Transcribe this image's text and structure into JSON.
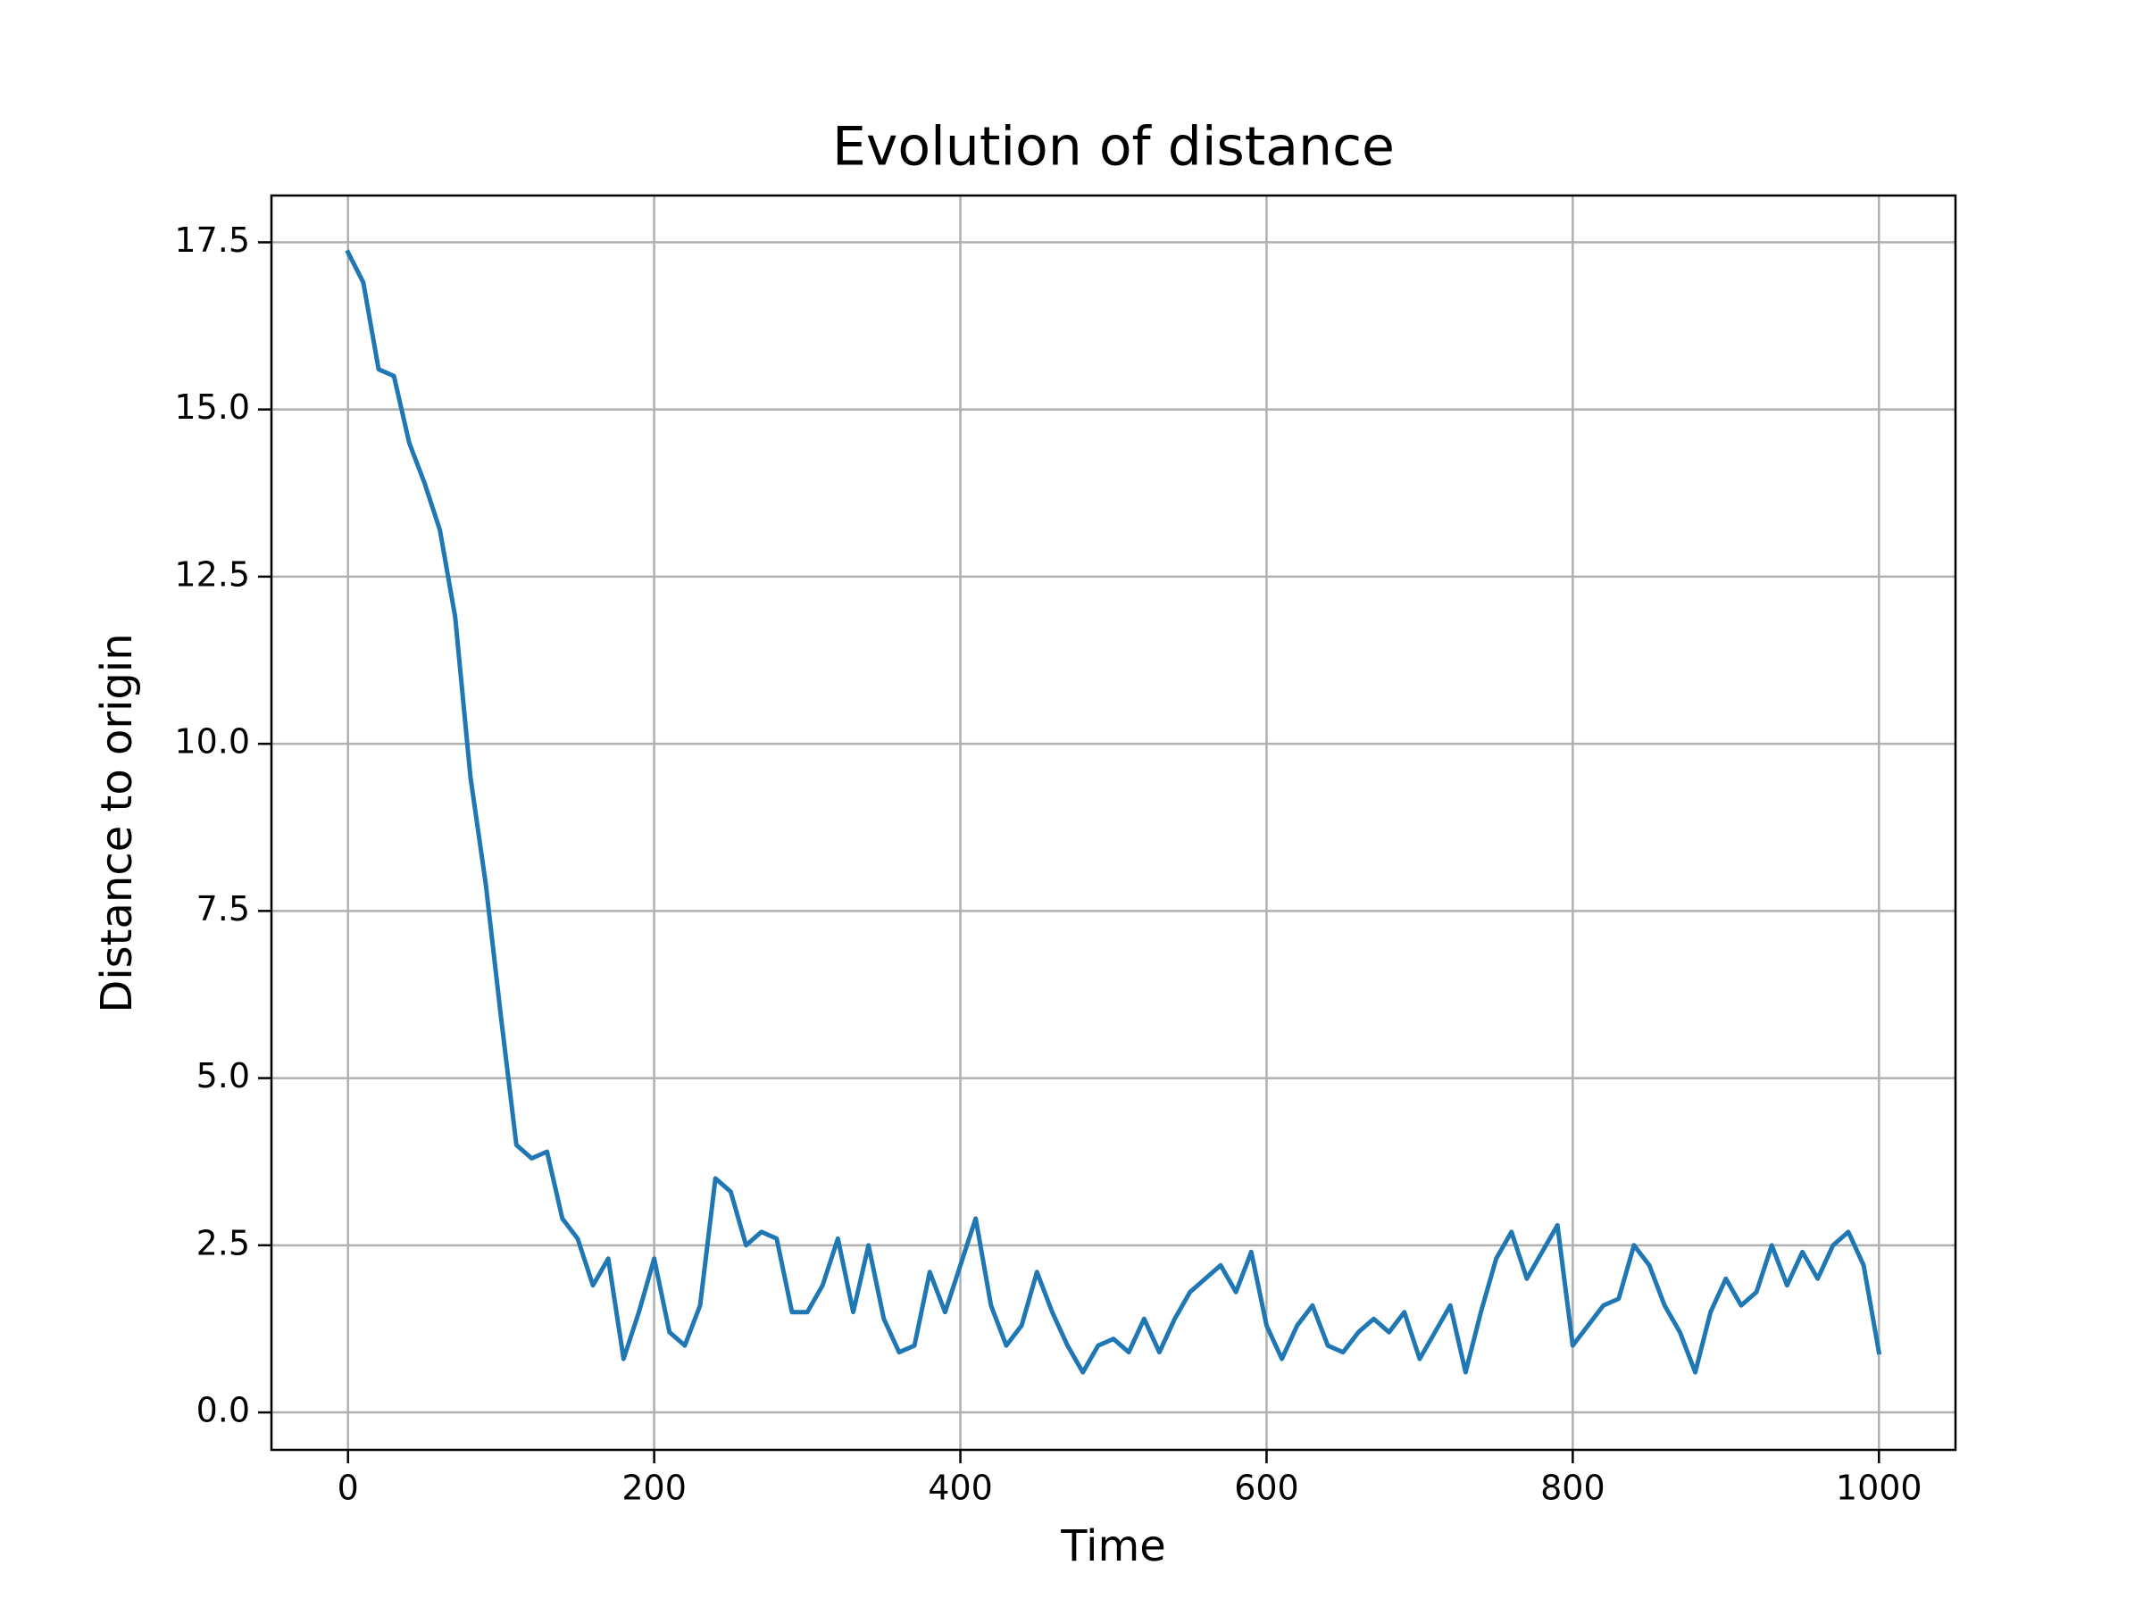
{
  "chart_data": {
    "type": "line",
    "title": "Evolution of distance",
    "x_label": "Time",
    "y_label": "Distance to origin",
    "x": [
      0,
      10,
      20,
      30,
      40,
      50,
      60,
      70,
      80,
      90,
      100,
      110,
      120,
      130,
      140,
      150,
      160,
      170,
      180,
      190,
      200,
      210,
      220,
      230,
      240,
      250,
      260,
      270,
      280,
      290,
      300,
      310,
      320,
      330,
      340,
      350,
      360,
      370,
      380,
      390,
      400,
      410,
      420,
      430,
      440,
      450,
      460,
      470,
      480,
      490,
      500,
      510,
      520,
      530,
      540,
      550,
      560,
      570,
      580,
      590,
      600,
      610,
      620,
      630,
      640,
      650,
      660,
      670,
      680,
      690,
      700,
      710,
      720,
      730,
      740,
      750,
      760,
      770,
      780,
      790,
      800,
      810,
      820,
      830,
      840,
      850,
      860,
      870,
      880,
      890,
      900,
      910,
      920,
      930,
      940,
      950,
      960,
      970,
      980,
      990,
      1000
    ],
    "values": [
      17.35,
      16.9,
      15.6,
      15.5,
      14.5,
      13.9,
      13.2,
      11.9,
      9.5,
      7.9,
      5.9,
      4.0,
      3.8,
      3.9,
      2.9,
      2.6,
      1.9,
      2.3,
      0.8,
      1.5,
      2.3,
      1.2,
      1.0,
      1.6,
      3.5,
      3.3,
      2.5,
      2.7,
      2.6,
      1.5,
      1.5,
      1.9,
      2.6,
      1.5,
      2.5,
      1.4,
      0.9,
      1.0,
      2.1,
      1.5,
      2.2,
      2.9,
      1.6,
      1.0,
      1.3,
      2.1,
      1.5,
      1.0,
      0.6,
      1.0,
      1.1,
      0.9,
      1.4,
      0.9,
      1.4,
      1.8,
      2.0,
      2.2,
      1.8,
      2.4,
      1.3,
      0.8,
      1.3,
      1.6,
      1.0,
      0.9,
      1.2,
      1.4,
      1.2,
      1.5,
      0.8,
      1.2,
      1.6,
      0.6,
      1.5,
      2.3,
      2.7,
      2.0,
      2.4,
      2.8,
      1.0,
      1.3,
      1.6,
      1.7,
      2.5,
      2.2,
      1.6,
      1.2,
      0.6,
      1.5,
      2.0,
      1.6,
      1.8,
      2.5,
      1.9,
      2.4,
      2.0,
      2.5,
      2.7,
      2.2,
      0.9
    ],
    "color": "#1f77b4",
    "xlim": [
      -50,
      1050
    ],
    "xticks": [
      0,
      200,
      400,
      600,
      800,
      1000
    ],
    "ylim": [
      -0.56,
      18.2
    ],
    "yticks": [
      {
        "value": 0,
        "label": "0.0"
      },
      2.5,
      {
        "value": 5,
        "label": "5.0"
      },
      7.5,
      {
        "value": 10,
        "label": "10.0"
      },
      12.5,
      {
        "value": 15,
        "label": "15.0"
      },
      17.5
    ],
    "grid": true
  }
}
